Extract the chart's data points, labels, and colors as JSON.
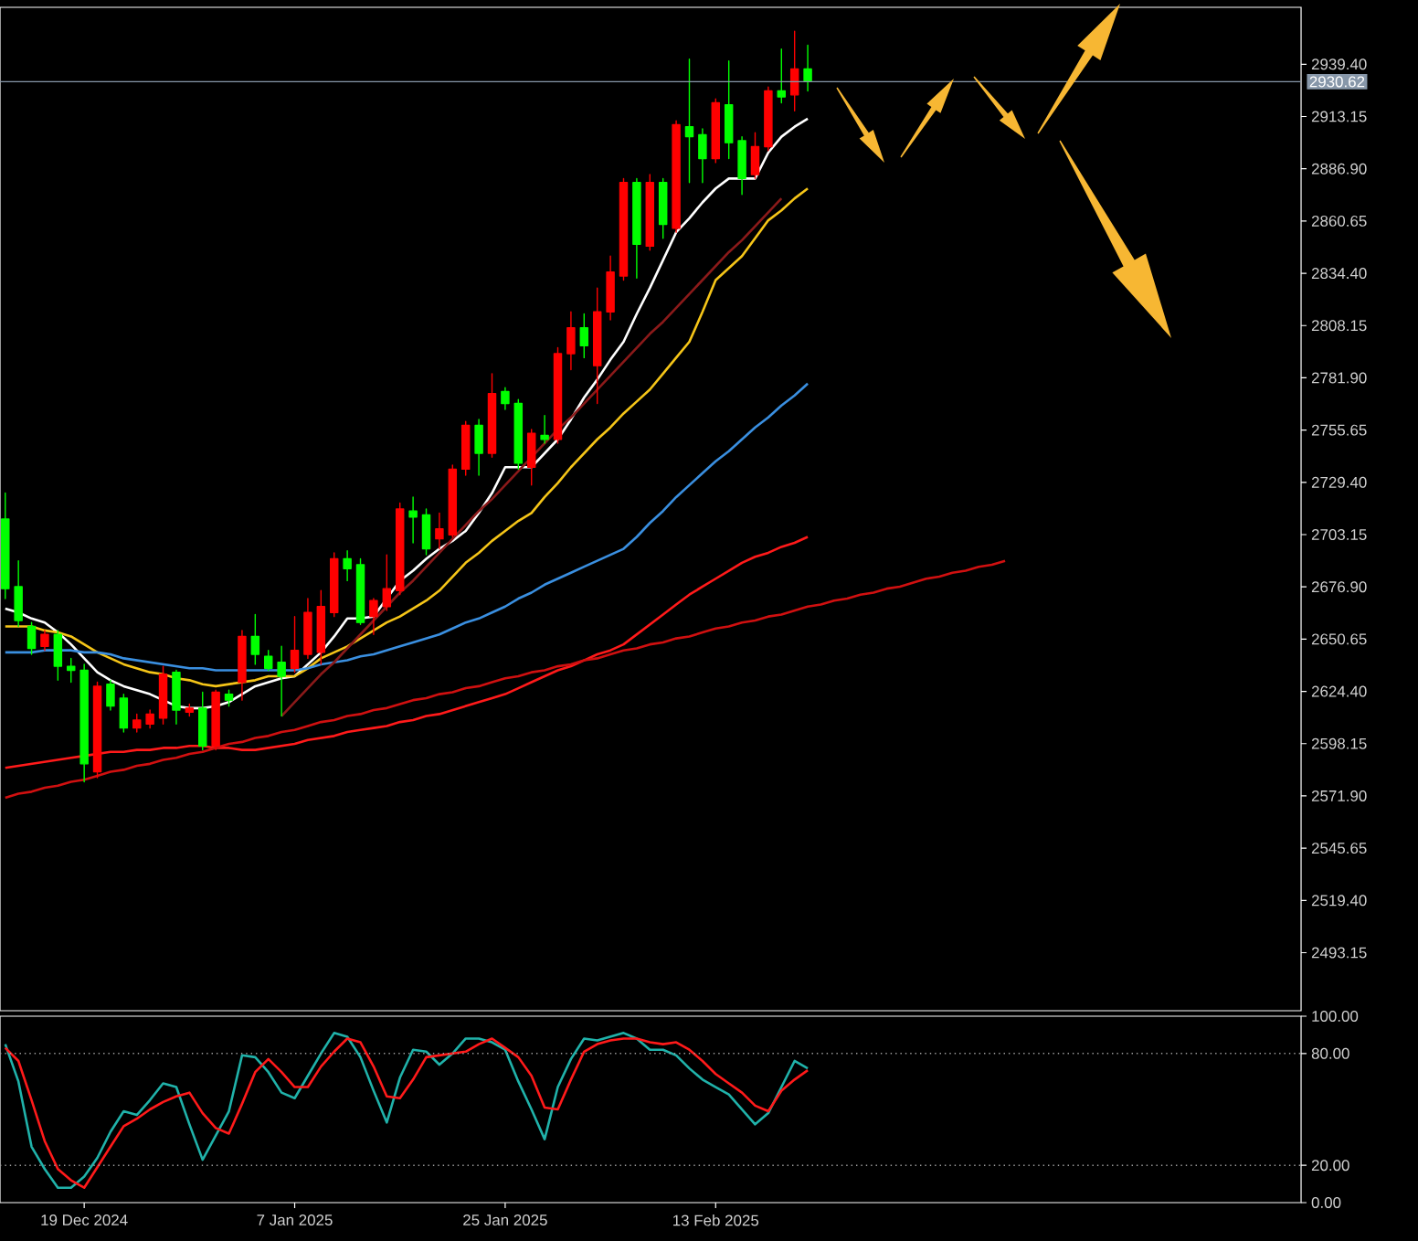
{
  "chart_data": [
    {
      "type": "candlestick",
      "categories": [
        null,
        null,
        null,
        null,
        null,
        null,
        null,
        null,
        null,
        null,
        null,
        null,
        null,
        null,
        null,
        null,
        null,
        null,
        null,
        null,
        null,
        null,
        null,
        null,
        null,
        null,
        null,
        null,
        null,
        null,
        null,
        null,
        null,
        null,
        null,
        null,
        null,
        null,
        null,
        null,
        null,
        null,
        null,
        null,
        null,
        null,
        null,
        null,
        null,
        null,
        null,
        null,
        null,
        null,
        null,
        null,
        null,
        null,
        null,
        null,
        null,
        null,
        null,
        null,
        null,
        null,
        null,
        null,
        null,
        null,
        null,
        null,
        null,
        null,
        null,
        null,
        null
      ],
      "ohlc": [
        [
          2711,
          2724,
          2671,
          2676
        ],
        [
          2677,
          2690,
          2657,
          2660
        ],
        [
          2657,
          2659,
          2643,
          2646
        ],
        [
          2647,
          2655,
          2645,
          2653
        ],
        [
          2653,
          2655,
          2630,
          2637
        ],
        [
          2637,
          2641,
          2629,
          2635
        ],
        [
          2635,
          2638,
          2579,
          2588
        ],
        [
          2584,
          2629,
          2581,
          2627
        ],
        [
          2628,
          2630,
          2615,
          2617
        ],
        [
          2621,
          2623,
          2604,
          2606
        ],
        [
          2606,
          2613,
          2604,
          2610
        ],
        [
          2608,
          2615,
          2606,
          2613
        ],
        [
          2611,
          2637,
          2608,
          2633
        ],
        [
          2634,
          2635,
          2608,
          2615
        ],
        [
          2614,
          2618,
          2612,
          2616
        ],
        [
          2616,
          2624,
          2595,
          2597
        ],
        [
          2597,
          2625,
          2595,
          2624
        ],
        [
          2623,
          2625,
          2617,
          2620
        ],
        [
          2629,
          2655,
          2620,
          2652
        ],
        [
          2652,
          2663,
          2638,
          2643
        ],
        [
          2642,
          2645,
          2635,
          2636
        ],
        [
          2639,
          2647,
          2612,
          2632
        ],
        [
          2636,
          2662,
          2634,
          2645
        ],
        [
          2643,
          2671,
          2641,
          2664
        ],
        [
          2644,
          2675,
          2638,
          2667
        ],
        [
          2664,
          2694,
          2662,
          2691
        ],
        [
          2691,
          2695,
          2680,
          2686
        ],
        [
          2688,
          2691,
          2658,
          2659
        ],
        [
          2662,
          2671,
          2653,
          2670
        ],
        [
          2667,
          2693,
          2665,
          2676
        ],
        [
          2675,
          2719,
          2673,
          2716
        ],
        [
          2715,
          2722,
          2699,
          2712
        ],
        [
          2713,
          2716,
          2693,
          2696
        ],
        [
          2701,
          2714,
          2696,
          2706
        ],
        [
          2703,
          2738,
          2702,
          2736
        ],
        [
          2736,
          2760,
          2733,
          2758
        ],
        [
          2758,
          2761,
          2733,
          2744
        ],
        [
          2744,
          2784,
          2742,
          2774
        ],
        [
          2775,
          2777,
          2766,
          2769
        ],
        [
          2769,
          2771,
          2736,
          2739
        ],
        [
          2737,
          2756,
          2728,
          2754
        ],
        [
          2753,
          2763,
          2749,
          2751
        ],
        [
          2751,
          2797,
          2749,
          2794
        ],
        [
          2794,
          2815,
          2786,
          2807
        ],
        [
          2807,
          2814,
          2792,
          2798
        ],
        [
          2788,
          2827,
          2769,
          2815
        ],
        [
          2815,
          2843,
          2811,
          2835
        ],
        [
          2833,
          2882,
          2831,
          2880
        ],
        [
          2880,
          2882,
          2832,
          2849
        ],
        [
          2848,
          2884,
          2846,
          2880
        ],
        [
          2880,
          2882,
          2852,
          2859
        ],
        [
          2857,
          2911,
          2855,
          2909
        ],
        [
          2908,
          2942,
          2880,
          2903
        ],
        [
          2904,
          2907,
          2880,
          2892
        ],
        [
          2892,
          2922,
          2890,
          2920
        ],
        [
          2919,
          2941,
          2892,
          2900
        ],
        [
          2901,
          2903,
          2874,
          2882
        ],
        [
          2884,
          2905,
          2882,
          2898
        ],
        [
          2898,
          2928,
          2896,
          2926
        ],
        [
          2926,
          2947,
          2920,
          2923
        ],
        [
          2924,
          2956,
          2916,
          2937
        ],
        [
          2937,
          2949,
          2926,
          2931
        ],
        null,
        null,
        null,
        null,
        null,
        null,
        null,
        null,
        null,
        null,
        null,
        null,
        null,
        null,
        null
      ],
      "colors": [
        "#00ff00",
        "#00ff00",
        "#00ff00",
        "#ff0000",
        "#00ff00",
        "#00ff00",
        "#00ff00",
        "#ff0000",
        "#00ff00",
        "#00ff00",
        "#ff0000",
        "#ff0000",
        "#ff0000",
        "#00ff00",
        "#ff0000",
        "#00ff00",
        "#ff0000",
        "#00ff00",
        "#ff0000",
        "#00ff00",
        "#00ff00",
        "#00ff00",
        "#ff0000",
        "#ff0000",
        "#ff0000",
        "#ff0000",
        "#00ff00",
        "#00ff00",
        "#ff0000",
        "#ff0000",
        "#ff0000",
        "#00ff00",
        "#00ff00",
        "#ff0000",
        "#ff0000",
        "#ff0000",
        "#00ff00",
        "#ff0000",
        "#00ff00",
        "#00ff00",
        "#ff0000",
        "#00ff00",
        "#ff0000",
        "#ff0000",
        "#00ff00",
        "#ff0000",
        "#ff0000",
        "#ff0000",
        "#00ff00",
        "#ff0000",
        "#00ff00",
        "#ff0000",
        "#00ff00",
        "#00ff00",
        "#ff0000",
        "#00ff00",
        "#00ff00",
        "#ff0000",
        "#ff0000",
        "#00ff00",
        "#ff0000",
        "#00ff00",
        null,
        null,
        null,
        null,
        null,
        null,
        null,
        null,
        null,
        null,
        null,
        null,
        null,
        null,
        null
      ],
      "series": [
        {
          "type": "line",
          "color": "#ffffff",
          "values": [
            2666,
            2664,
            2661,
            2659,
            2654,
            2648,
            2641,
            2634,
            2630,
            2627,
            2625,
            2623,
            2620,
            2617,
            2616,
            2616,
            2617,
            2619,
            2623,
            2627,
            2629,
            2631,
            2632,
            2638,
            2644,
            2652,
            2661,
            2661,
            2662,
            2671,
            2680,
            2685,
            2691,
            2696,
            2700,
            2705,
            2714,
            2724,
            2737,
            2737,
            2737,
            2744,
            2751,
            2761,
            2772,
            2781,
            2791,
            2800,
            2814,
            2827,
            2841,
            2855,
            2862,
            2870,
            2877,
            2882,
            2882,
            2882,
            2895,
            2903,
            2908,
            2912,
            null,
            null,
            null,
            null,
            null,
            null,
            null,
            null,
            null,
            null,
            null,
            null,
            null,
            null,
            null
          ]
        },
        {
          "type": "line",
          "color": "#f5c518",
          "values": [
            2657,
            2657,
            2657,
            2655,
            2654,
            2652,
            2648,
            2644,
            2641,
            2638,
            2636,
            2634,
            2633,
            2631,
            2630,
            2628,
            2627,
            2628,
            2629,
            2630,
            2632,
            2632,
            2632,
            2636,
            2641,
            2644,
            2647,
            2651,
            2655,
            2659,
            2662,
            2666,
            2670,
            2675,
            2682,
            2689,
            2694,
            2700,
            2705,
            2710,
            2714,
            2722,
            2729,
            2737,
            2744,
            2751,
            2757,
            2764,
            2770,
            2776,
            2784,
            2792,
            2800,
            2815,
            2831,
            2837,
            2843,
            2852,
            2861,
            2866,
            2872,
            2877,
            null,
            null,
            null,
            null,
            null,
            null,
            null,
            null,
            null,
            null,
            null,
            null,
            null,
            null,
            null
          ]
        },
        {
          "type": "line",
          "color": "#3a8fe0",
          "values": [
            2644,
            2644,
            2644,
            2645,
            2645,
            2645,
            2644,
            2644,
            2643,
            2641,
            2640,
            2639,
            2638,
            2637,
            2636,
            2636,
            2635,
            2635,
            2635,
            2635,
            2635,
            2635,
            2635,
            2636,
            2638,
            2639,
            2640,
            2642,
            2643,
            2645,
            2647,
            2649,
            2651,
            2653,
            2656,
            2659,
            2661,
            2664,
            2667,
            2671,
            2674,
            2678,
            2681,
            2684,
            2687,
            2690,
            2693,
            2696,
            2702,
            2709,
            2715,
            2722,
            2728,
            2734,
            2740,
            2745,
            2751,
            2757,
            2762,
            2768,
            2773,
            2779,
            null,
            null,
            null,
            null,
            null,
            null,
            null,
            null,
            null,
            null,
            null,
            null,
            null,
            null,
            null
          ]
        },
        {
          "type": "line",
          "color": "#ff1a1a",
          "values": [
            2586,
            2587,
            2588,
            2589,
            2590,
            2591,
            2592,
            2593,
            2594,
            2594,
            2595,
            2595,
            2596,
            2596,
            2597,
            2597,
            2596,
            2596,
            2595,
            2595,
            2596,
            2597,
            2598,
            2600,
            2601,
            2602,
            2604,
            2605,
            2606,
            2607,
            2609,
            2610,
            2612,
            2613,
            2615,
            2617,
            2619,
            2621,
            2623,
            2626,
            2629,
            2632,
            2635,
            2637,
            2640,
            2643,
            2645,
            2648,
            2653,
            2658,
            2663,
            2668,
            2673,
            2677,
            2681,
            2685,
            2689,
            2692,
            2694,
            2697,
            2699,
            2702,
            null,
            null,
            null,
            null,
            null,
            null,
            null,
            null,
            null,
            null,
            null,
            null,
            null,
            null,
            null
          ]
        },
        {
          "type": "line",
          "color": "#d01010",
          "values": [
            2571,
            2573,
            2574,
            2576,
            2577,
            2579,
            2580,
            2582,
            2584,
            2585,
            2587,
            2588,
            2590,
            2591,
            2593,
            2594,
            2596,
            2598,
            2599,
            2601,
            2602,
            2604,
            2605,
            2607,
            2609,
            2610,
            2612,
            2613,
            2615,
            2616,
            2618,
            2620,
            2621,
            2623,
            2624,
            2626,
            2627,
            2629,
            2631,
            2632,
            2634,
            2635,
            2637,
            2638,
            2640,
            2641,
            2643,
            2645,
            2646,
            2648,
            2649,
            2651,
            2652,
            2654,
            2656,
            2657,
            2659,
            2660,
            2662,
            2663,
            2665,
            2667,
            2668,
            2670,
            2671,
            2673,
            2674,
            2676,
            2677,
            2679,
            2681,
            2682,
            2684,
            2685,
            2687,
            2688,
            2690
          ]
        },
        {
          "type": "line",
          "color": "#8b1a1a",
          "values": [
            null,
            null,
            null,
            null,
            null,
            null,
            null,
            null,
            null,
            null,
            null,
            null,
            null,
            null,
            null,
            null,
            null,
            null,
            null,
            null,
            null,
            2612,
            2619,
            2626,
            2633,
            2639,
            2646,
            2653,
            2660,
            2667,
            2674,
            2680,
            2687,
            2694,
            2701,
            2708,
            2715,
            2721,
            2728,
            2735,
            2742,
            2749,
            2756,
            2762,
            2769,
            2776,
            2783,
            2790,
            2797,
            2804,
            2810,
            2817,
            2824,
            2831,
            2838,
            2845,
            2851,
            2858,
            2865,
            2872,
            null,
            null,
            null,
            null,
            null,
            null,
            null,
            null,
            null,
            null,
            null,
            null,
            null,
            null,
            null,
            null,
            null
          ]
        }
      ],
      "ylim": [
        2464,
        2968
      ],
      "yticks": [
        {
          "value": 2939.4,
          "label": "2939.40"
        },
        {
          "value": 2913.15,
          "label": "2913.15"
        },
        {
          "value": 2886.9,
          "label": "2886.90"
        },
        {
          "value": 2860.65,
          "label": "2860.65"
        },
        {
          "value": 2834.4,
          "label": "2834.40"
        },
        {
          "value": 2808.15,
          "label": "2808.15"
        },
        {
          "value": 2781.9,
          "label": "2781.90"
        },
        {
          "value": 2755.65,
          "label": "2755.65"
        },
        {
          "value": 2729.4,
          "label": "2729.40"
        },
        {
          "value": 2703.15,
          "label": "2703.15"
        },
        {
          "value": 2676.9,
          "label": "2676.90"
        },
        {
          "value": 2650.65,
          "label": "2650.65"
        },
        {
          "value": 2624.4,
          "label": "2624.40"
        },
        {
          "value": 2598.15,
          "label": "2598.15"
        },
        {
          "value": 2571.9,
          "label": "2571.90"
        },
        {
          "value": 2545.65,
          "label": "2545.65"
        },
        {
          "value": 2519.4,
          "label": "2519.40"
        },
        {
          "value": 2493.15,
          "label": "2493.15"
        }
      ],
      "tick_labels": "y",
      "ref_lines": [
        {
          "axis": "y",
          "value": 2930.62,
          "label": "2930.62",
          "color": "#8797a9",
          "line_style": "solid"
        }
      ]
    },
    {
      "type": "line",
      "categories": [
        null,
        null,
        null,
        null,
        null,
        null,
        "19 Dec 2024",
        null,
        null,
        null,
        null,
        null,
        null,
        null,
        null,
        null,
        null,
        null,
        null,
        null,
        null,
        null,
        "7 Jan 2025",
        null,
        null,
        null,
        null,
        null,
        null,
        null,
        null,
        null,
        null,
        null,
        null,
        null,
        null,
        null,
        "25 Jan 2025",
        null,
        null,
        null,
        null,
        null,
        null,
        null,
        null,
        null,
        null,
        null,
        null,
        null,
        null,
        null,
        "13 Feb 2025",
        null,
        null,
        null,
        null,
        null,
        null,
        null,
        null,
        null,
        null,
        null,
        null,
        null,
        null,
        null,
        null,
        null,
        null,
        null,
        null,
        null,
        null
      ],
      "series": [
        {
          "color": "#20b2aa",
          "values": [
            85,
            65,
            30,
            18,
            8,
            8,
            14,
            24,
            38,
            49,
            47,
            55,
            64,
            62,
            42,
            23,
            36,
            49,
            79,
            78,
            70,
            59,
            56,
            68,
            80,
            91,
            89,
            78,
            60,
            43,
            67,
            82,
            81,
            74,
            80,
            88,
            88,
            86,
            82,
            65,
            50,
            34,
            62,
            77,
            88,
            87,
            89,
            91,
            88,
            82,
            82,
            79,
            72,
            66,
            62,
            58,
            50,
            42,
            48,
            62,
            76,
            72,
            null,
            null,
            null,
            null,
            null,
            null,
            null,
            null,
            null,
            null,
            null,
            null,
            null,
            null,
            null
          ]
        },
        {
          "color": "#ff1a1a",
          "values": [
            83,
            76,
            55,
            33,
            18,
            12,
            8,
            19,
            30,
            41,
            45,
            50,
            54,
            57,
            59,
            48,
            40,
            37,
            53,
            70,
            77,
            70,
            62,
            62,
            73,
            81,
            88,
            86,
            73,
            57,
            56,
            66,
            78,
            79,
            80,
            81,
            85,
            88,
            83,
            78,
            68,
            51,
            50,
            66,
            81,
            85,
            87,
            88,
            88,
            86,
            85,
            86,
            82,
            76,
            69,
            64,
            59,
            52,
            49,
            60,
            66,
            71,
            null,
            null,
            null,
            null,
            null,
            null,
            null,
            null,
            null,
            null,
            null,
            null,
            null,
            null,
            null
          ]
        }
      ],
      "ylim": [
        0,
        100
      ],
      "yticks": [
        {
          "value": 0,
          "label": "0.00"
        },
        {
          "value": 20,
          "label": "20.00"
        },
        {
          "value": 80,
          "label": "80.00"
        },
        {
          "value": 100,
          "label": "100.00"
        }
      ],
      "ref_lines": [
        {
          "axis": "y",
          "value": 80,
          "color": "#a0a0a0",
          "line_style": "dotted"
        },
        {
          "axis": "y",
          "value": 20,
          "color": "#a0a0a0",
          "line_style": "dotted"
        }
      ]
    }
  ]
}
